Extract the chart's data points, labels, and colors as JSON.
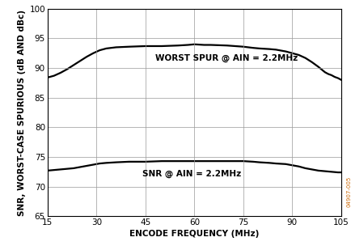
{
  "title": "",
  "xlabel": "ENCODE FREQUENCY (MHz)",
  "ylabel": "SNR, WORST-CASE SPURIOUS (dB AND dBc)",
  "xlim": [
    15,
    105
  ],
  "ylim": [
    65,
    100
  ],
  "xticks": [
    15,
    30,
    45,
    60,
    75,
    90,
    105
  ],
  "yticks": [
    65,
    70,
    75,
    80,
    85,
    90,
    95,
    100
  ],
  "line_color": "#000000",
  "bg_color": "#ffffff",
  "grid_color": "#999999",
  "label_worst_spur": "WORST SPUR @ AIN = 2.2MHz",
  "label_snr": "SNR @ AIN = 2.2MHz",
  "worst_spur_x": [
    15,
    17,
    19,
    21,
    23,
    25,
    27,
    29,
    31,
    33,
    36,
    40,
    45,
    50,
    55,
    58,
    60,
    63,
    65,
    70,
    75,
    78,
    80,
    83,
    85,
    88,
    90,
    92,
    94,
    96,
    98,
    100,
    101,
    102,
    103,
    104,
    105
  ],
  "worst_spur_y": [
    88.4,
    88.7,
    89.2,
    89.8,
    90.5,
    91.2,
    91.9,
    92.5,
    93.0,
    93.3,
    93.5,
    93.6,
    93.7,
    93.7,
    93.8,
    93.9,
    94.0,
    93.9,
    93.9,
    93.8,
    93.6,
    93.4,
    93.3,
    93.2,
    93.1,
    92.8,
    92.5,
    92.2,
    91.7,
    91.0,
    90.2,
    89.3,
    89.0,
    88.8,
    88.5,
    88.3,
    88.0
  ],
  "snr_x": [
    15,
    17,
    19,
    21,
    23,
    25,
    27,
    29,
    31,
    33,
    36,
    40,
    45,
    50,
    55,
    60,
    65,
    70,
    75,
    78,
    80,
    83,
    85,
    88,
    90,
    92,
    94,
    96,
    98,
    100,
    101,
    102,
    103,
    104,
    105
  ],
  "snr_y": [
    72.7,
    72.8,
    72.9,
    73.0,
    73.1,
    73.3,
    73.5,
    73.7,
    73.9,
    74.0,
    74.1,
    74.2,
    74.2,
    74.3,
    74.3,
    74.3,
    74.3,
    74.3,
    74.3,
    74.2,
    74.1,
    74.0,
    73.9,
    73.8,
    73.6,
    73.4,
    73.1,
    72.9,
    72.7,
    72.6,
    72.55,
    72.5,
    72.45,
    72.4,
    72.4
  ],
  "watermark": "04907-005",
  "label_fontsize": 7.5,
  "tick_fontsize": 7.5,
  "axis_label_fontsize": 7.5,
  "line_width": 1.6
}
